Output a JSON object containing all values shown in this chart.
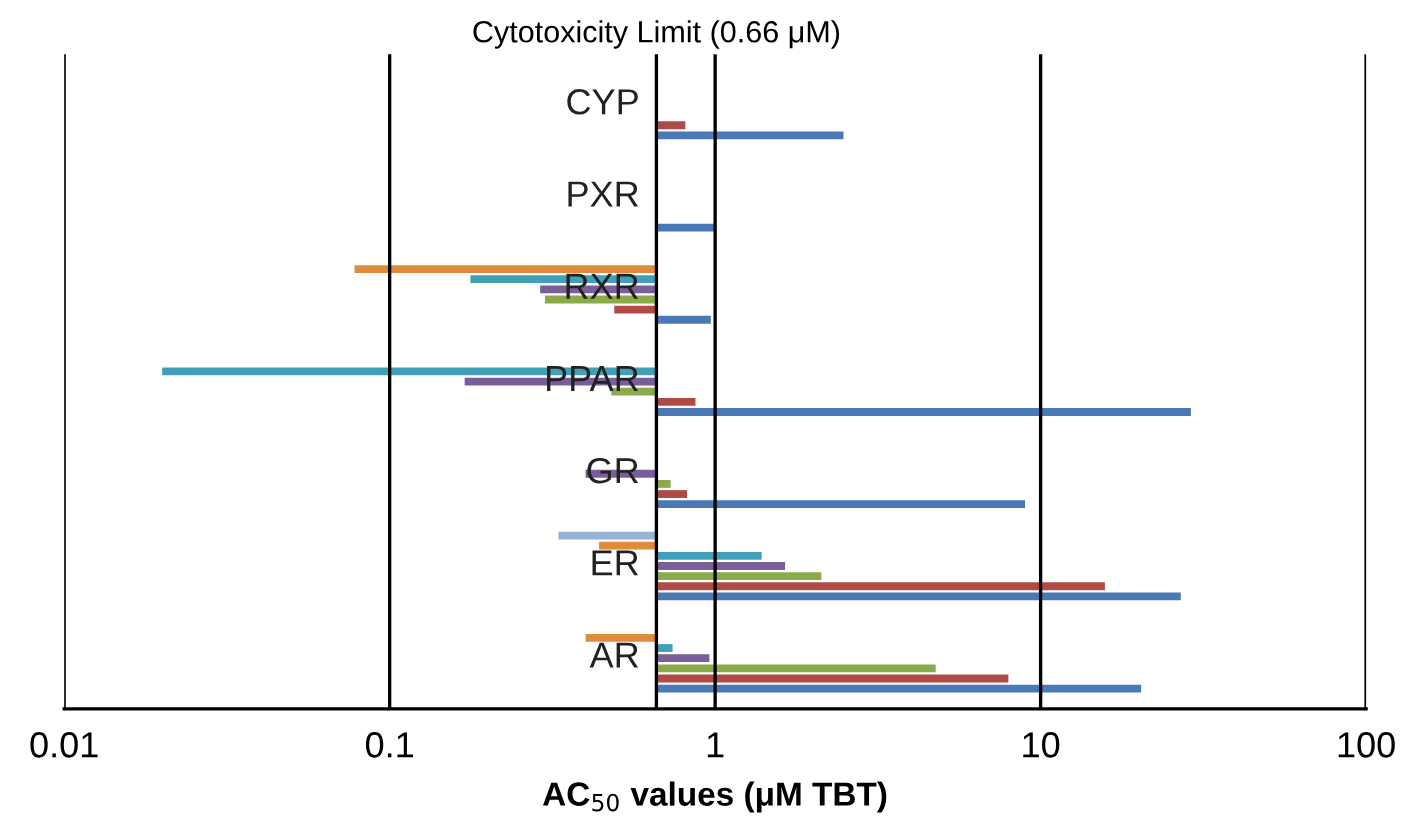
{
  "chart_data": {
    "type": "bar",
    "orientation": "horizontal",
    "xlabel": "AC$_{50}$ values (μM TBT)",
    "categories": [
      "CYP",
      "PXR",
      "RXR",
      "PPAR",
      "GR",
      "ER",
      "AR"
    ],
    "series": [
      {
        "color": "#4a7ab5",
        "base": [
          0.66,
          0.66,
          0.66,
          0.66,
          0.66,
          0.66,
          0.66
        ],
        "values": [
          1.82,
          0.34,
          0.31,
          28.3,
          8.3,
          26.3,
          19.7
        ]
      },
      {
        "color": "#b04a45",
        "base": [
          0.66,
          null,
          0.66,
          0.66,
          0.66,
          0.66,
          0.66
        ],
        "values": [
          0.15,
          null,
          -0.17,
          0.21,
          0.16,
          15.1,
          7.3
        ]
      },
      {
        "color": "#8bab4a",
        "base": [
          null,
          null,
          0.66,
          0.66,
          0.66,
          0.66,
          0.66
        ],
        "values": [
          null,
          null,
          -0.36,
          -0.18,
          0.07,
          1.46,
          4.1
        ]
      },
      {
        "color": "#7a5e9a",
        "base": [
          null,
          null,
          0.66,
          0.66,
          0.66,
          0.66,
          0.66
        ],
        "values": [
          null,
          null,
          -0.37,
          -0.49,
          -0.26,
          0.98,
          0.3
        ]
      },
      {
        "color": "#41a0b8",
        "base": [
          null,
          null,
          0.66,
          0.66,
          null,
          0.66,
          0.66
        ],
        "values": [
          null,
          null,
          -0.483,
          -0.64,
          null,
          0.73,
          0.08
        ]
      },
      {
        "color": "#e08a3c",
        "base": [
          null,
          null,
          0.66,
          null,
          null,
          0.66,
          0.66
        ],
        "values": [
          null,
          null,
          -0.582,
          null,
          null,
          -0.22,
          -0.26
        ]
      },
      {
        "color": "#95b3d7",
        "base": [
          null,
          null,
          null,
          null,
          null,
          0.66,
          null
        ],
        "values": [
          null,
          null,
          null,
          null,
          null,
          -0.33,
          null
        ]
      }
    ],
    "log": "x",
    "xlim": [
      0.01,
      100
    ],
    "xticks": [
      0.01,
      0.1,
      1,
      10,
      100
    ],
    "grid": "x",
    "ref_lines": [
      {
        "axis": "x",
        "value": 0.66,
        "label": "Cytotoxicity Limit (0.66 μM)",
        "color": "#000000"
      }
    ]
  }
}
